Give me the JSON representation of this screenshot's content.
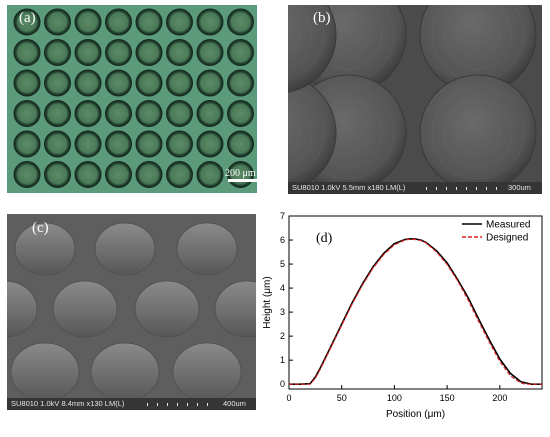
{
  "panels": {
    "a": {
      "label": "(a)",
      "scale_label": "200 μm"
    },
    "b": {
      "label": "(b)",
      "footer_info": "SU8010 1.0kV 5.5mm x180 LM(L)",
      "footer_scale": "300um"
    },
    "c": {
      "label": "(c)",
      "footer_info": "SU8010 1.0kV 8.4mm x130 LM(L)",
      "footer_scale": "400um"
    },
    "d": {
      "label": "(d)"
    }
  },
  "chart_data": {
    "type": "line",
    "xlabel": "Position (μm)",
    "ylabel": "Height (μm)",
    "xlim": [
      0,
      240
    ],
    "ylim": [
      -0.2,
      7
    ],
    "xticks": [
      0,
      50,
      100,
      150,
      200
    ],
    "yticks": [
      0,
      1,
      2,
      3,
      4,
      5,
      6,
      7
    ],
    "legend_position": "top-right",
    "series": [
      {
        "name": "Measured",
        "color": "#000000",
        "dash": "solid",
        "x": [
          0,
          10,
          20,
          25,
          30,
          40,
          50,
          60,
          70,
          80,
          90,
          100,
          110,
          115,
          120,
          125,
          130,
          140,
          150,
          160,
          170,
          180,
          190,
          200,
          210,
          220,
          225,
          230,
          240
        ],
        "y": [
          0.0,
          0.0,
          0.02,
          0.3,
          0.7,
          1.6,
          2.5,
          3.4,
          4.2,
          4.9,
          5.45,
          5.85,
          6.02,
          6.05,
          6.04,
          6.0,
          5.9,
          5.55,
          5.05,
          4.35,
          3.6,
          2.7,
          1.85,
          1.05,
          0.45,
          0.1,
          0.05,
          0.0,
          0.0
        ]
      },
      {
        "name": "Designed",
        "color": "#e02020",
        "dash": "dashed",
        "x": [
          0,
          10,
          20,
          25,
          30,
          40,
          50,
          60,
          70,
          80,
          90,
          100,
          110,
          115,
          120,
          125,
          130,
          140,
          150,
          160,
          170,
          180,
          190,
          200,
          210,
          220,
          225,
          230,
          240
        ],
        "y": [
          0.0,
          0.0,
          0.0,
          0.25,
          0.65,
          1.55,
          2.45,
          3.35,
          4.15,
          4.85,
          5.4,
          5.8,
          6.0,
          6.03,
          6.02,
          5.98,
          5.88,
          5.5,
          4.98,
          4.3,
          3.5,
          2.6,
          1.75,
          0.95,
          0.35,
          0.05,
          0.0,
          0.0,
          0.0
        ]
      }
    ]
  }
}
